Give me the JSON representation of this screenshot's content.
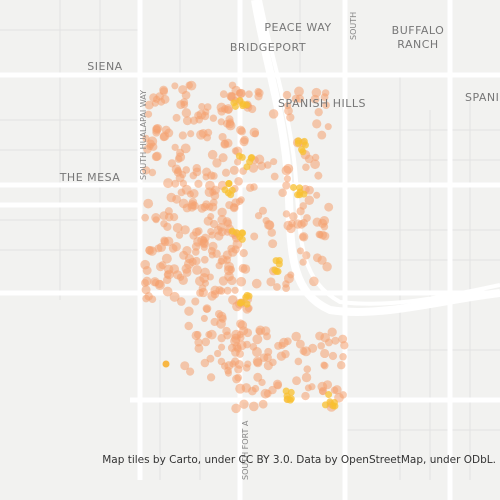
{
  "labels": {
    "peace_way": "PEACE WAY",
    "buffalo_ranch": [
      "BUFFALO",
      "RANCH"
    ],
    "bridgeport": "BRIDGEPORT",
    "siena": "SIENA",
    "spanish_hills": "SPANISH HILLS",
    "spanish_hills_cut": "SPANI",
    "the_mesa": "THE MESA",
    "hualapai": "SOUTH HUALAPAI WAY",
    "south_top": "SOUTH",
    "fort_apache": "SOUTH FORT A"
  },
  "attribution": "Map tiles by Carto, under CC BY 3.0. Data by OpenStreetMap, under ODbL."
}
